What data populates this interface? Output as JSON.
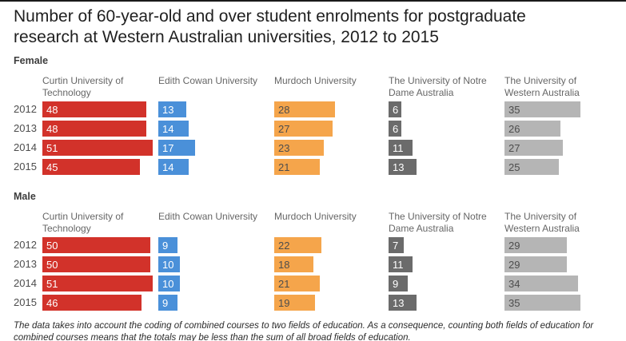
{
  "title": "Number of 60-year-old and over student enrolments for postgraduate research at Western Australian universities, 2012 to 2015",
  "footnote": "The data takes into account the coding of combined courses to two fields of education. As a consequence, counting both fields of education for combined courses means that the totals may be less than the sum of all broad fields of education.",
  "chart_data": {
    "type": "bar",
    "orientation": "horizontal",
    "value_labels": "inside-start",
    "axis_hidden": true,
    "categories": [
      "2012",
      "2013",
      "2014",
      "2015"
    ],
    "columns": [
      {
        "label": "Curtin University of Technology",
        "label_lines": [
          "Curtin University of",
          "Technology"
        ],
        "color": "#d2322a",
        "value_color": "#ffffff"
      },
      {
        "label": "Edith Cowan University",
        "label_lines": [
          "Edith Cowan University"
        ],
        "color": "#4a90d9",
        "value_color": "#ffffff"
      },
      {
        "label": "Murdoch University",
        "label_lines": [
          "Murdoch University"
        ],
        "color": "#f5a54b",
        "value_color": "#4d4d4d"
      },
      {
        "label": "The University of Notre Dame Australia",
        "label_lines": [
          "The University of Notre",
          "Dame Australia"
        ],
        "color": "#6b6b6b",
        "value_color": "#ffffff"
      },
      {
        "label": "The University of Western Australia",
        "label_lines": [
          "The University of",
          "Western Australia"
        ],
        "color": "#b5b5b5",
        "value_color": "#4d4d4d"
      }
    ],
    "groups": [
      {
        "label": "Female",
        "series": [
          {
            "name": "Curtin University of Technology",
            "values": [
              48,
              48,
              51,
              45
            ]
          },
          {
            "name": "Edith Cowan University",
            "values": [
              13,
              14,
              17,
              14
            ]
          },
          {
            "name": "Murdoch University",
            "values": [
              28,
              27,
              23,
              21
            ]
          },
          {
            "name": "The University of Notre Dame Australia",
            "values": [
              6,
              6,
              11,
              13
            ]
          },
          {
            "name": "The University of Western Australia",
            "values": [
              35,
              26,
              27,
              25
            ]
          }
        ]
      },
      {
        "label": "Male",
        "series": [
          {
            "name": "Curtin University of Technology",
            "values": [
              50,
              50,
              51,
              46
            ]
          },
          {
            "name": "Edith Cowan University",
            "values": [
              9,
              10,
              10,
              9
            ]
          },
          {
            "name": "Murdoch University",
            "values": [
              22,
              18,
              21,
              19
            ]
          },
          {
            "name": "The University of Notre Dame Australia",
            "values": [
              7,
              11,
              9,
              13
            ]
          },
          {
            "name": "The University of Western Australia",
            "values": [
              29,
              29,
              34,
              35
            ]
          }
        ]
      }
    ]
  }
}
